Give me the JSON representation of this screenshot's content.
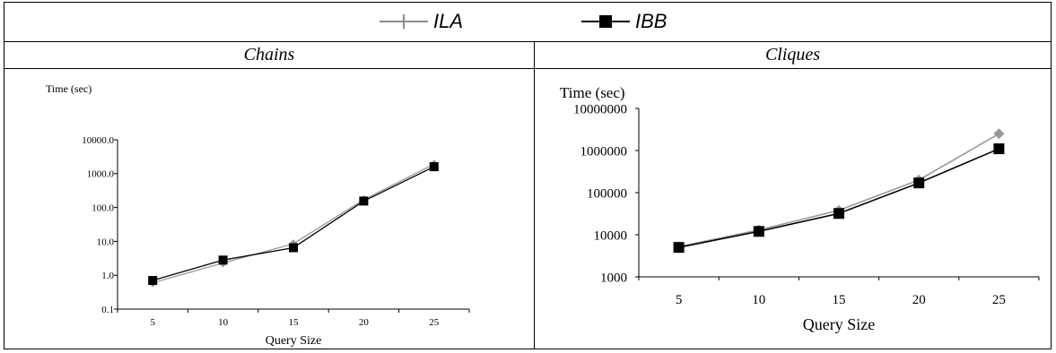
{
  "legend": {
    "items": [
      {
        "label": "ILA",
        "color": "#8c8c8c",
        "marker": "plus"
      },
      {
        "label": "IBB",
        "color": "#000000",
        "marker": "square"
      }
    ]
  },
  "chart_data": [
    {
      "type": "line",
      "title": "Chains",
      "ylabel": "Time (sec)",
      "xlabel": "Query Size",
      "y_scale": "log",
      "ylim": [
        0.1,
        10000
      ],
      "y_ticks": [
        "0.1",
        "1.0",
        "10.0",
        "100.0",
        "1000.0",
        "10000.0"
      ],
      "categories": [
        "5",
        "10",
        "15",
        "20",
        "25"
      ],
      "grid": false,
      "series": [
        {
          "name": "ILA",
          "color": "#999999",
          "marker": "diamond",
          "values": [
            0.6,
            2.3,
            8.5,
            170,
            1900
          ]
        },
        {
          "name": "IBB",
          "color": "#000000",
          "marker": "square",
          "values": [
            0.7,
            2.8,
            6.5,
            155,
            1600
          ]
        }
      ]
    },
    {
      "type": "line",
      "title": "Cliques",
      "ylabel": "Time (sec)",
      "xlabel": "Query Size",
      "y_scale": "log",
      "ylim": [
        1000,
        10000000
      ],
      "y_ticks": [
        "1000",
        "10000",
        "100000",
        "1000000",
        "10000000"
      ],
      "categories": [
        "5",
        "10",
        "15",
        "20",
        "25"
      ],
      "grid": false,
      "series": [
        {
          "name": "ILA",
          "color": "#999999",
          "marker": "diamond",
          "values": [
            5200,
            13000,
            38000,
            200000,
            2500000
          ]
        },
        {
          "name": "IBB",
          "color": "#000000",
          "marker": "square",
          "values": [
            5000,
            12000,
            32000,
            170000,
            1100000
          ]
        }
      ]
    }
  ]
}
